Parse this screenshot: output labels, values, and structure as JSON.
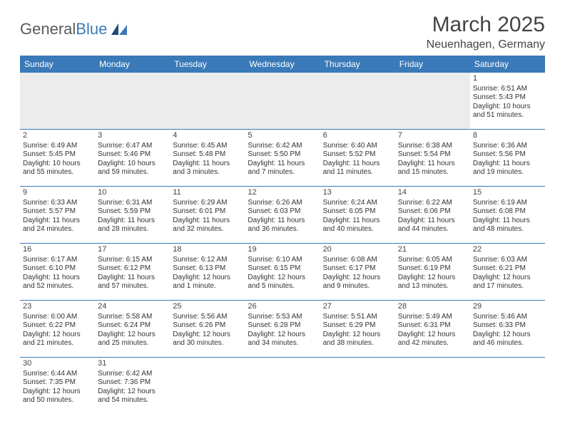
{
  "logo": {
    "text1": "General",
    "text2": "Blue"
  },
  "title": "March 2025",
  "location": "Neuenhagen, Germany",
  "colors": {
    "header_bg": "#3a7ab8",
    "header_fg": "#ffffff",
    "rule": "#3a7ab8"
  },
  "weekdays": [
    "Sunday",
    "Monday",
    "Tuesday",
    "Wednesday",
    "Thursday",
    "Friday",
    "Saturday"
  ],
  "weeks": [
    [
      null,
      null,
      null,
      null,
      null,
      null,
      {
        "n": "1",
        "sr": "Sunrise: 6:51 AM",
        "ss": "Sunset: 5:43 PM",
        "dl": "Daylight: 10 hours and 51 minutes."
      }
    ],
    [
      {
        "n": "2",
        "sr": "Sunrise: 6:49 AM",
        "ss": "Sunset: 5:45 PM",
        "dl": "Daylight: 10 hours and 55 minutes."
      },
      {
        "n": "3",
        "sr": "Sunrise: 6:47 AM",
        "ss": "Sunset: 5:46 PM",
        "dl": "Daylight: 10 hours and 59 minutes."
      },
      {
        "n": "4",
        "sr": "Sunrise: 6:45 AM",
        "ss": "Sunset: 5:48 PM",
        "dl": "Daylight: 11 hours and 3 minutes."
      },
      {
        "n": "5",
        "sr": "Sunrise: 6:42 AM",
        "ss": "Sunset: 5:50 PM",
        "dl": "Daylight: 11 hours and 7 minutes."
      },
      {
        "n": "6",
        "sr": "Sunrise: 6:40 AM",
        "ss": "Sunset: 5:52 PM",
        "dl": "Daylight: 11 hours and 11 minutes."
      },
      {
        "n": "7",
        "sr": "Sunrise: 6:38 AM",
        "ss": "Sunset: 5:54 PM",
        "dl": "Daylight: 11 hours and 15 minutes."
      },
      {
        "n": "8",
        "sr": "Sunrise: 6:36 AM",
        "ss": "Sunset: 5:56 PM",
        "dl": "Daylight: 11 hours and 19 minutes."
      }
    ],
    [
      {
        "n": "9",
        "sr": "Sunrise: 6:33 AM",
        "ss": "Sunset: 5:57 PM",
        "dl": "Daylight: 11 hours and 24 minutes."
      },
      {
        "n": "10",
        "sr": "Sunrise: 6:31 AM",
        "ss": "Sunset: 5:59 PM",
        "dl": "Daylight: 11 hours and 28 minutes."
      },
      {
        "n": "11",
        "sr": "Sunrise: 6:29 AM",
        "ss": "Sunset: 6:01 PM",
        "dl": "Daylight: 11 hours and 32 minutes."
      },
      {
        "n": "12",
        "sr": "Sunrise: 6:26 AM",
        "ss": "Sunset: 6:03 PM",
        "dl": "Daylight: 11 hours and 36 minutes."
      },
      {
        "n": "13",
        "sr": "Sunrise: 6:24 AM",
        "ss": "Sunset: 6:05 PM",
        "dl": "Daylight: 11 hours and 40 minutes."
      },
      {
        "n": "14",
        "sr": "Sunrise: 6:22 AM",
        "ss": "Sunset: 6:06 PM",
        "dl": "Daylight: 11 hours and 44 minutes."
      },
      {
        "n": "15",
        "sr": "Sunrise: 6:19 AM",
        "ss": "Sunset: 6:08 PM",
        "dl": "Daylight: 11 hours and 48 minutes."
      }
    ],
    [
      {
        "n": "16",
        "sr": "Sunrise: 6:17 AM",
        "ss": "Sunset: 6:10 PM",
        "dl": "Daylight: 11 hours and 52 minutes."
      },
      {
        "n": "17",
        "sr": "Sunrise: 6:15 AM",
        "ss": "Sunset: 6:12 PM",
        "dl": "Daylight: 11 hours and 57 minutes."
      },
      {
        "n": "18",
        "sr": "Sunrise: 6:12 AM",
        "ss": "Sunset: 6:13 PM",
        "dl": "Daylight: 12 hours and 1 minute."
      },
      {
        "n": "19",
        "sr": "Sunrise: 6:10 AM",
        "ss": "Sunset: 6:15 PM",
        "dl": "Daylight: 12 hours and 5 minutes."
      },
      {
        "n": "20",
        "sr": "Sunrise: 6:08 AM",
        "ss": "Sunset: 6:17 PM",
        "dl": "Daylight: 12 hours and 9 minutes."
      },
      {
        "n": "21",
        "sr": "Sunrise: 6:05 AM",
        "ss": "Sunset: 6:19 PM",
        "dl": "Daylight: 12 hours and 13 minutes."
      },
      {
        "n": "22",
        "sr": "Sunrise: 6:03 AM",
        "ss": "Sunset: 6:21 PM",
        "dl": "Daylight: 12 hours and 17 minutes."
      }
    ],
    [
      {
        "n": "23",
        "sr": "Sunrise: 6:00 AM",
        "ss": "Sunset: 6:22 PM",
        "dl": "Daylight: 12 hours and 21 minutes."
      },
      {
        "n": "24",
        "sr": "Sunrise: 5:58 AM",
        "ss": "Sunset: 6:24 PM",
        "dl": "Daylight: 12 hours and 25 minutes."
      },
      {
        "n": "25",
        "sr": "Sunrise: 5:56 AM",
        "ss": "Sunset: 6:26 PM",
        "dl": "Daylight: 12 hours and 30 minutes."
      },
      {
        "n": "26",
        "sr": "Sunrise: 5:53 AM",
        "ss": "Sunset: 6:28 PM",
        "dl": "Daylight: 12 hours and 34 minutes."
      },
      {
        "n": "27",
        "sr": "Sunrise: 5:51 AM",
        "ss": "Sunset: 6:29 PM",
        "dl": "Daylight: 12 hours and 38 minutes."
      },
      {
        "n": "28",
        "sr": "Sunrise: 5:49 AM",
        "ss": "Sunset: 6:31 PM",
        "dl": "Daylight: 12 hours and 42 minutes."
      },
      {
        "n": "29",
        "sr": "Sunrise: 5:46 AM",
        "ss": "Sunset: 6:33 PM",
        "dl": "Daylight: 12 hours and 46 minutes."
      }
    ],
    [
      {
        "n": "30",
        "sr": "Sunrise: 6:44 AM",
        "ss": "Sunset: 7:35 PM",
        "dl": "Daylight: 12 hours and 50 minutes."
      },
      {
        "n": "31",
        "sr": "Sunrise: 6:42 AM",
        "ss": "Sunset: 7:36 PM",
        "dl": "Daylight: 12 hours and 54 minutes."
      },
      null,
      null,
      null,
      null,
      null
    ]
  ]
}
